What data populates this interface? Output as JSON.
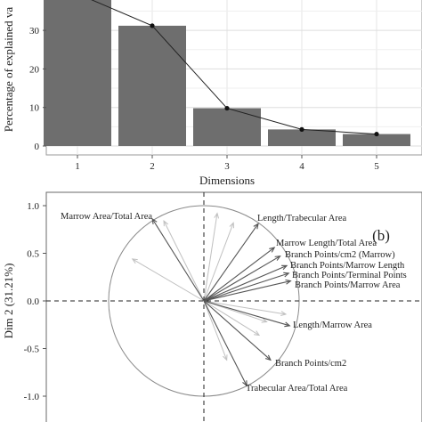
{
  "chart_data": [
    {
      "type": "bar",
      "xlabel": "Dimensions",
      "ylabel": "Percentage of explained va",
      "categories": [
        "1",
        "2",
        "3",
        "4",
        "5"
      ],
      "values": [
        39.5,
        31.2,
        9.8,
        4.3,
        3.1
      ],
      "line": true,
      "ylim": [
        0,
        40
      ],
      "yticks": [
        "0",
        "10",
        "20",
        "30"
      ],
      "grid": true,
      "bar_color": "#6e6e6e"
    },
    {
      "type": "scatter",
      "subtype": "pca-correlation-circle",
      "panel_label": "(b)",
      "ylabel": "Dim 2 (31.21%)",
      "ylim": [
        -1.2,
        1.2
      ],
      "yticks": [
        "1.0",
        "0.5",
        "0.0",
        "-0.5",
        "-1.0"
      ],
      "highlighted_vectors": [
        {
          "label": "Marrow Area/Total Area",
          "x": -0.54,
          "y": 0.86
        },
        {
          "label": "Length/Trabecular Area",
          "x": 0.57,
          "y": 0.81
        },
        {
          "label": "Marrow Length/Total Area",
          "x": 0.74,
          "y": 0.56
        },
        {
          "label": "Branch Points/cm2 (Marrow)",
          "x": 0.8,
          "y": 0.47
        },
        {
          "label": "Branch Points/Marrow Length",
          "x": 0.87,
          "y": 0.37
        },
        {
          "label": "Branch Points/Terminal Points",
          "x": 0.89,
          "y": 0.29
        },
        {
          "label": "Branch Points/Marrow Area",
          "x": 0.91,
          "y": 0.21
        },
        {
          "label": "Length/Marrow Area",
          "x": 0.9,
          "y": -0.26
        },
        {
          "label": "Branch Points/cm2",
          "x": 0.7,
          "y": -0.62
        },
        {
          "label": "Trabecular Area/Total Area",
          "x": 0.45,
          "y": -0.89
        }
      ],
      "supplementary_vectors": [
        {
          "x": -0.75,
          "y": 0.44
        },
        {
          "x": -0.42,
          "y": 0.84
        },
        {
          "x": 0.14,
          "y": 0.92
        },
        {
          "x": 0.31,
          "y": 0.82
        },
        {
          "x": 0.86,
          "y": -0.14
        },
        {
          "x": 0.66,
          "y": -0.22
        },
        {
          "x": 0.58,
          "y": -0.36
        },
        {
          "x": 0.24,
          "y": -0.62
        }
      ],
      "vector_color": "#555555",
      "supplementary_color": "#c0c0c0",
      "circle": true
    }
  ]
}
